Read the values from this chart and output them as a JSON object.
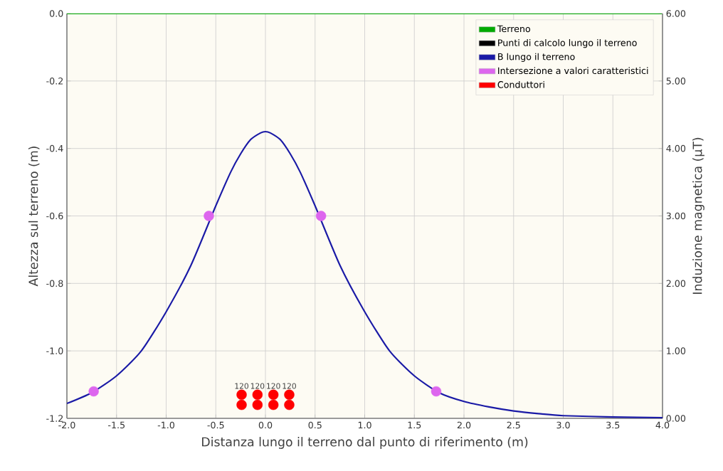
{
  "chart_data": {
    "type": "line",
    "xlabel": "Distanza lungo il terreno dal punto di riferimento (m)",
    "ylabel": "Altezza sul terreno (m)",
    "y2label": "Induzione magnetica (µT)",
    "xlim": [
      -2,
      4
    ],
    "xticks": [
      {
        "value": -2,
        "label": "-2.0"
      },
      {
        "value": -1.5,
        "label": "-1.5"
      },
      {
        "value": -1,
        "label": "-1.0"
      },
      {
        "value": -0.5,
        "label": "-0.5"
      },
      {
        "value": 0,
        "label": "0.0"
      },
      {
        "value": 0.5,
        "label": "0.5"
      },
      {
        "value": 1,
        "label": "1.0"
      },
      {
        "value": 1.5,
        "label": "1.5"
      },
      {
        "value": 2,
        "label": "2.0"
      },
      {
        "value": 2.5,
        "label": "2.5"
      },
      {
        "value": 3,
        "label": "3.0"
      },
      {
        "value": 3.5,
        "label": "3.5"
      },
      {
        "value": 4,
        "label": "4.0"
      }
    ],
    "ylim": [
      -1.2,
      0
    ],
    "yticks": [
      {
        "value": -1.2,
        "label": "-1.2"
      },
      {
        "value": -1,
        "label": "-1.0"
      },
      {
        "value": -0.8,
        "label": "-0.8"
      },
      {
        "value": -0.6,
        "label": "-0.6"
      },
      {
        "value": -0.4,
        "label": "-0.4"
      },
      {
        "value": -0.2,
        "label": "-0.2"
      },
      {
        "value": 0,
        "label": "0.0"
      }
    ],
    "y2lim": [
      0,
      6
    ],
    "y2ticks": [
      {
        "value": 0,
        "label": "0.00"
      },
      {
        "value": 1,
        "label": "1.00"
      },
      {
        "value": 2,
        "label": "2.00"
      },
      {
        "value": 3,
        "label": "3.00"
      },
      {
        "value": 4,
        "label": "4.00"
      },
      {
        "value": 5,
        "label": "5.00"
      },
      {
        "value": 6,
        "label": "6.00"
      }
    ],
    "grid": true,
    "legend": "top right",
    "series": [
      {
        "name": "Terreno",
        "color": "#00aa00",
        "marker": "none",
        "x": [
          -2,
          4
        ],
        "values": [
          0,
          0
        ]
      },
      {
        "name": "Punti di calcolo lungo il terreno",
        "type": "scatter",
        "color": "#000000",
        "marker": "circle"
      },
      {
        "name": "B lungo il terreno",
        "axis": "y2",
        "color": "#1a1aa6",
        "marker": "none",
        "x": [
          -2,
          -1.75,
          -1.5,
          -1.25,
          -1,
          -0.75,
          -0.5,
          -0.35,
          -0.25,
          -0.15,
          -0.05,
          0,
          0.05,
          0.15,
          0.25,
          0.35,
          0.5,
          0.75,
          1,
          1.25,
          1.5,
          1.75,
          2,
          2.25,
          2.5,
          2.75,
          3,
          3.5,
          4
        ],
        "values": [
          0.22,
          0.38,
          0.63,
          1.0,
          1.58,
          2.27,
          3.15,
          3.65,
          3.92,
          4.13,
          4.23,
          4.25,
          4.23,
          4.13,
          3.92,
          3.65,
          3.15,
          2.27,
          1.58,
          1.0,
          0.63,
          0.38,
          0.25,
          0.17,
          0.11,
          0.07,
          0.04,
          0.02,
          0.01
        ]
      },
      {
        "name": "Intersezione a valori caratteristici",
        "type": "scatter",
        "axis": "y2",
        "color": "#dd66ee",
        "marker": "circle",
        "x": [
          -1.73,
          -0.57,
          0.56,
          1.72
        ],
        "values": [
          0.4,
          3.0,
          3.0,
          0.4
        ]
      },
      {
        "name": "Conduttori",
        "type": "scatter",
        "color": "#ff0000",
        "marker": "circle",
        "x": [
          -0.24,
          -0.08,
          0.08,
          0.24,
          -0.24,
          -0.08,
          0.08,
          0.24
        ],
        "values": [
          -1.13,
          -1.13,
          -1.13,
          -1.13,
          -1.16,
          -1.16,
          -1.16,
          -1.16
        ]
      }
    ],
    "annotations": [
      {
        "text": "120",
        "x": -0.24,
        "y": -1.13
      },
      {
        "text": "120",
        "x": -0.08,
        "y": -1.13
      },
      {
        "text": "120",
        "x": 0.08,
        "y": -1.13
      },
      {
        "text": "120",
        "x": 0.24,
        "y": -1.13
      }
    ]
  }
}
